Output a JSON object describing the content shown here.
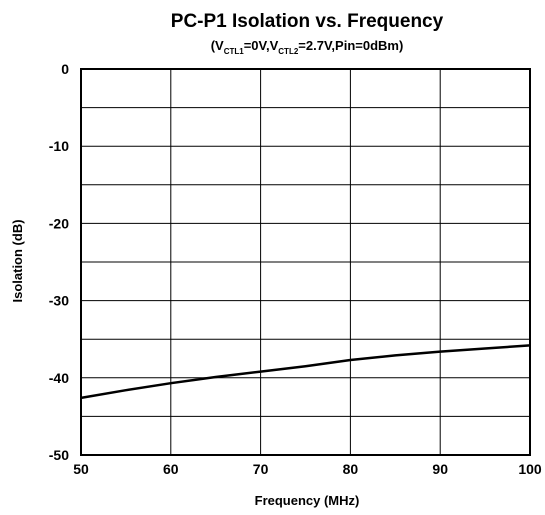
{
  "chart_data": {
    "type": "line",
    "title": "PC-P1 Isolation vs. Frequency",
    "subtitle": {
      "open": "(V",
      "sub1": "CTL1",
      "mid": "=0V,V",
      "sub2": "CTL2",
      "close": "=2.7V,Pin=0dBm)"
    },
    "xlabel": "Frequency (MHz)",
    "ylabel": "Isolation (dB)",
    "xlim": [
      50,
      100
    ],
    "ylim": [
      -50,
      0
    ],
    "x_ticks": [
      50,
      60,
      70,
      80,
      90,
      100
    ],
    "y_ticks": [
      0,
      -10,
      -20,
      -30,
      -40,
      -50
    ],
    "y_minor_step": 5,
    "grid": true,
    "series": [
      {
        "color": "#000000",
        "x": [
          50,
          55,
          60,
          65,
          70,
          75,
          80,
          85,
          90,
          95,
          100
        ],
        "y": [
          -42.6,
          -41.6,
          -40.7,
          -39.9,
          -39.2,
          -38.5,
          -37.7,
          -37.1,
          -36.6,
          -36.2,
          -35.8
        ]
      }
    ]
  }
}
